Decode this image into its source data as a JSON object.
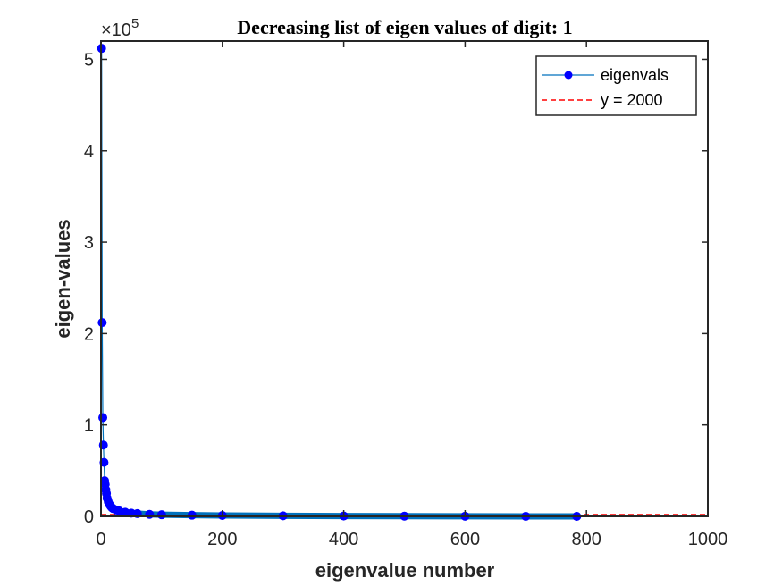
{
  "chart_data": {
    "type": "line",
    "title": "Decreasing list of eigen values of digit: 1",
    "xlabel": "eigenvalue number",
    "ylabel": "eigen-values",
    "xlim": [
      0,
      1000
    ],
    "ylim": [
      0,
      520000
    ],
    "x_ticks": [
      0,
      200,
      400,
      600,
      800,
      1000
    ],
    "x_tick_labels": [
      "0",
      "200",
      "400",
      "600",
      "800",
      "1000"
    ],
    "y_ticks": [
      0,
      100000,
      200000,
      300000,
      400000,
      500000
    ],
    "y_tick_labels": [
      "0",
      "1",
      "2",
      "3",
      "4",
      "5"
    ],
    "y_exponent_label": "×10",
    "y_exponent": "5",
    "grid": false,
    "legend_position": "top-right",
    "series": [
      {
        "name": "eigenvals",
        "color": "#0000ff",
        "line_color": "#0072bd",
        "marker": "circle",
        "x": [
          1,
          2,
          3,
          4,
          5,
          6,
          7,
          8,
          9,
          10,
          12,
          14,
          16,
          18,
          20,
          25,
          30,
          40,
          50,
          60,
          80,
          100,
          150,
          200,
          300,
          400,
          500,
          600,
          700,
          784
        ],
        "values": [
          512000,
          212000,
          108000,
          78000,
          59000,
          39000,
          35000,
          29000,
          25000,
          20000,
          16000,
          13000,
          11000,
          9500,
          8500,
          7000,
          6000,
          4500,
          3600,
          3000,
          2200,
          1800,
          1300,
          1000,
          600,
          380,
          250,
          150,
          60,
          0
        ]
      },
      {
        "name": "y = 2000",
        "color": "#ff0000",
        "line_style": "dashed",
        "x": [
          0,
          1000
        ],
        "values": [
          2000,
          2000
        ]
      }
    ]
  }
}
